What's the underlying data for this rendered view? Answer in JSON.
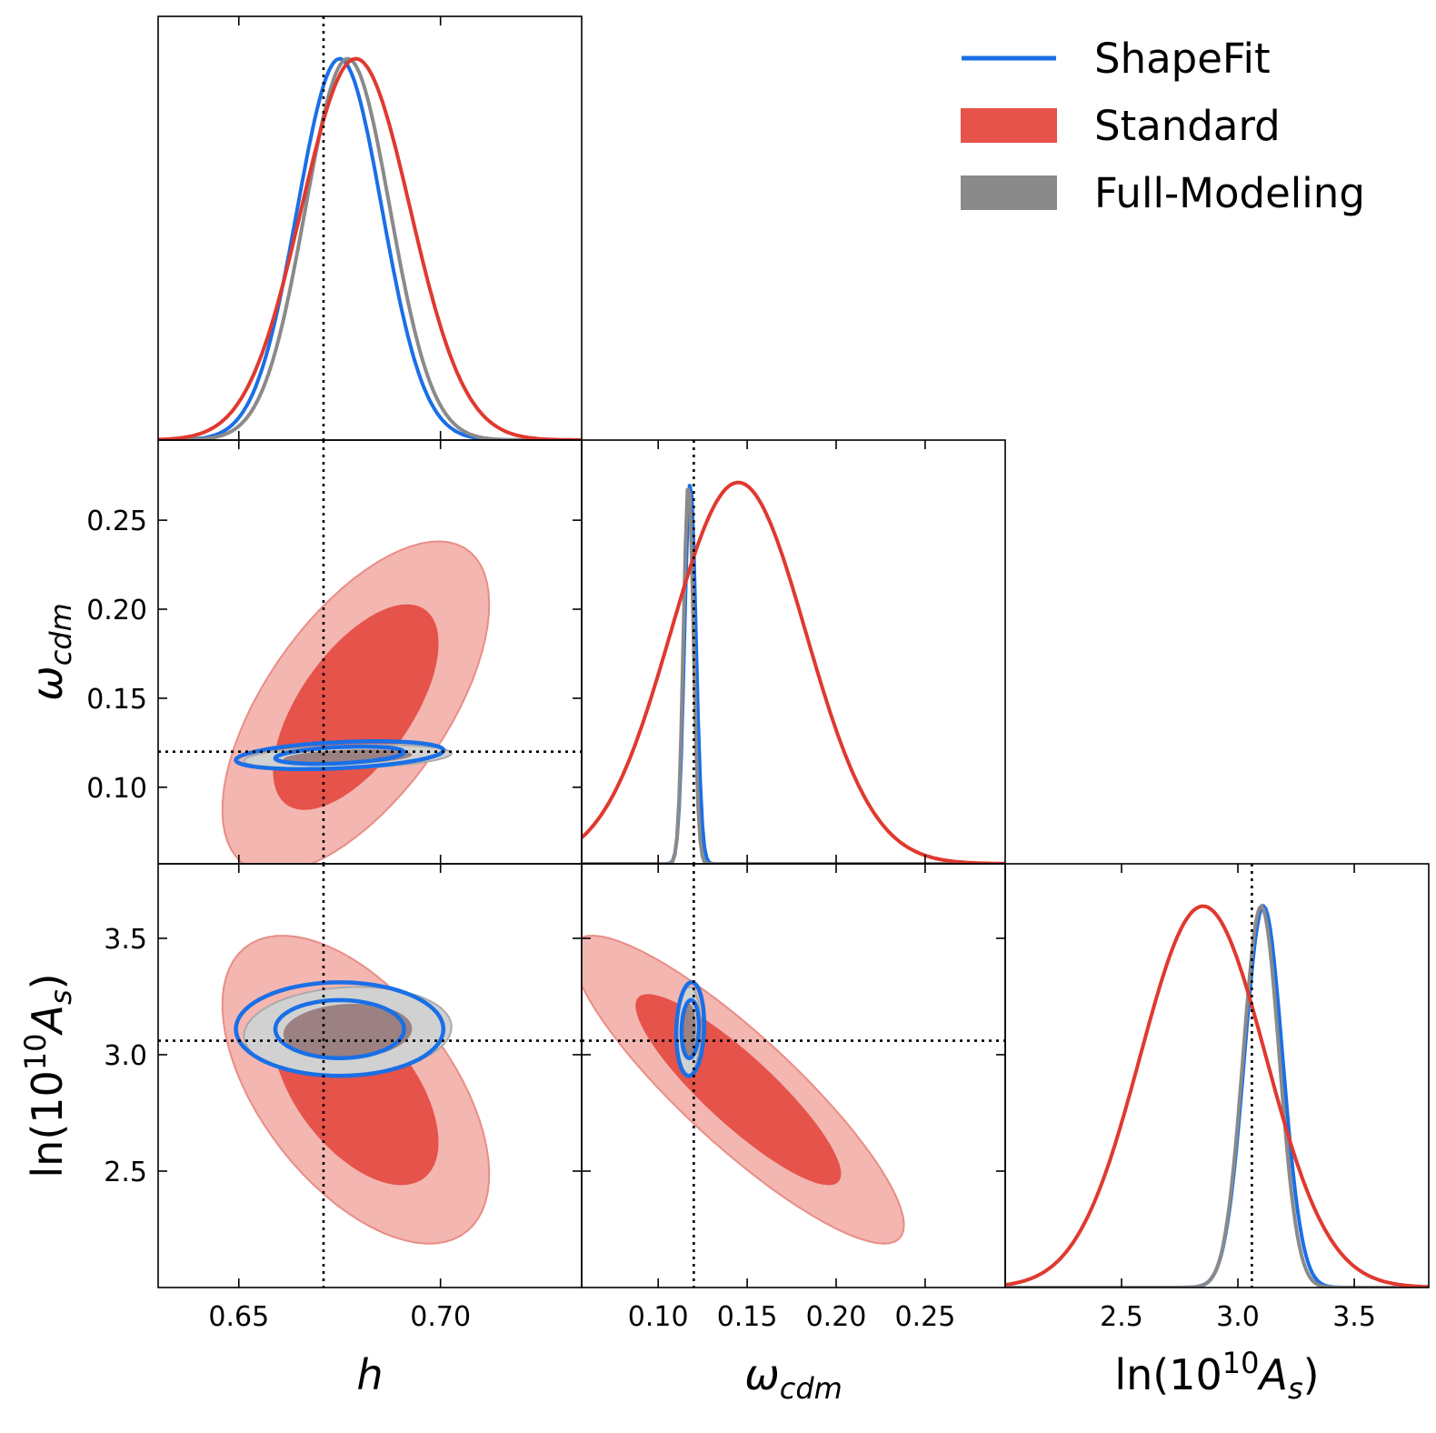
{
  "chart_data": {
    "type": "corner",
    "parameters": [
      {
        "key": "h",
        "label_main": "h",
        "label_sub": "",
        "range": [
          0.63,
          0.735
        ],
        "ticks": [
          0.65,
          0.7
        ],
        "tick_labels": [
          "0.65",
          "0.70"
        ],
        "truth": 0.671
      },
      {
        "key": "omega_cdm",
        "label_main": "ω",
        "label_sub": "cdm",
        "range": [
          0.057,
          0.295
        ],
        "ticks": [
          0.1,
          0.15,
          0.2,
          0.25
        ],
        "tick_labels": [
          "0.10",
          "0.15",
          "0.20",
          "0.25"
        ],
        "truth": 0.12
      },
      {
        "key": "lnAs",
        "label_main": "ln(10",
        "label_sup": "10",
        "label_end": "A",
        "label_sub": "s",
        "label_close": ")",
        "range": [
          2.0,
          3.82
        ],
        "ticks": [
          2.5,
          3.0,
          3.5
        ],
        "tick_labels": [
          "2.5",
          "3.0",
          "3.5"
        ],
        "truth": 3.06
      }
    ],
    "legend": {
      "placement": "top-right",
      "entries": [
        {
          "label": "ShapeFit",
          "style": "line",
          "color": "#1a6fe6"
        },
        {
          "label": "Standard",
          "style": "patch",
          "color": "#e5534b"
        },
        {
          "label": "Full-Modeling",
          "style": "patch",
          "color": "#8a8a8a"
        }
      ]
    },
    "series": [
      {
        "name": "ShapeFit",
        "color": "#1a6fe6",
        "means": [
          0.675,
          0.118,
          3.11
        ],
        "sigmas": [
          0.0105,
          0.0032,
          0.082
        ],
        "corr": {
          "h|omega_cdm": 0.35,
          "h|lnAs": 0.0,
          "omega_cdm|lnAs": 0.1
        }
      },
      {
        "name": "Standard",
        "color": "#e0392f",
        "means": [
          0.679,
          0.145,
          2.85
        ],
        "sigmas": [
          0.0135,
          0.038,
          0.27
        ],
        "corr": {
          "h|omega_cdm": 0.62,
          "h|lnAs": -0.55,
          "omega_cdm|lnAs": -0.88
        }
      },
      {
        "name": "Full-Modeling",
        "color": "#8a8a8a",
        "means": [
          0.677,
          0.117,
          3.1
        ],
        "sigmas": [
          0.0105,
          0.0028,
          0.078
        ],
        "corr": {
          "h|omega_cdm": 0.3,
          "h|lnAs": 0.1,
          "omega_cdm|lnAs": 0.1
        }
      }
    ],
    "colors": {
      "standard_inner": "#e5534b",
      "standard_outer": "#f3b6b1",
      "standard_outer_edge": "#e98d86",
      "full_inner": "#9b8181",
      "full_outer": "#d1d1d1",
      "full_edge": "#aaaaaa"
    }
  }
}
